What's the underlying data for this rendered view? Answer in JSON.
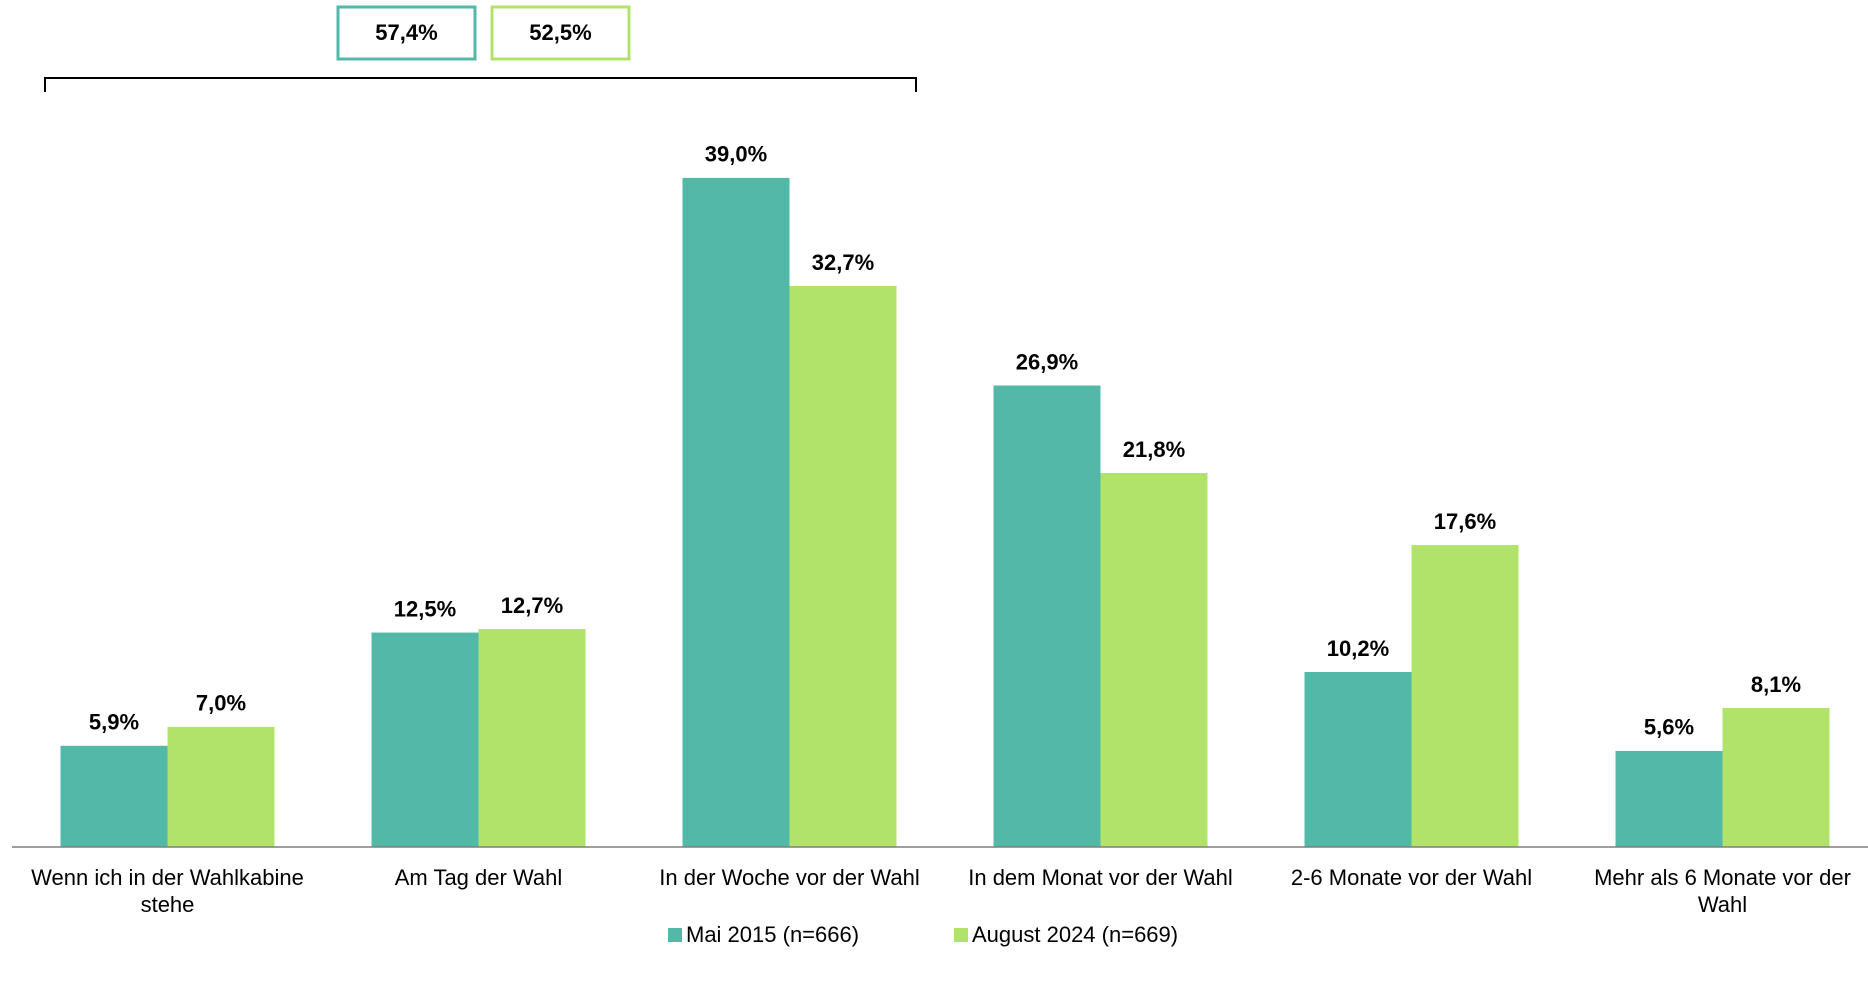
{
  "chart_data": {
    "type": "bar",
    "categories": [
      "Wenn ich in der Wahlkabine stehe",
      "Am Tag der Wahl",
      "In der Woche vor der Wahl",
      "In dem Monat vor der Wahl",
      "2-6 Monate vor der Wahl",
      "Mehr als 6 Monate vor der Wahl"
    ],
    "series": [
      {
        "name": "Mai 2015 (n=666)",
        "color": "#52b9a8",
        "values": [
          5.9,
          12.5,
          39.0,
          26.9,
          10.2,
          5.6
        ],
        "value_labels": [
          "5,9%",
          "12,5%",
          "39,0%",
          "26,9%",
          "10,2%",
          "5,6%"
        ]
      },
      {
        "name": "August 2024 (n=669)",
        "color": "#b1e36a",
        "values": [
          7.0,
          12.7,
          32.7,
          21.8,
          17.6,
          8.1
        ],
        "value_labels": [
          "7,0%",
          "12,7%",
          "32,7%",
          "21,8%",
          "17,6%",
          "8,1%"
        ]
      }
    ],
    "annotations": [
      "57,4%",
      "52,5%"
    ],
    "ylim": [
      0,
      45
    ],
    "grid": false
  }
}
